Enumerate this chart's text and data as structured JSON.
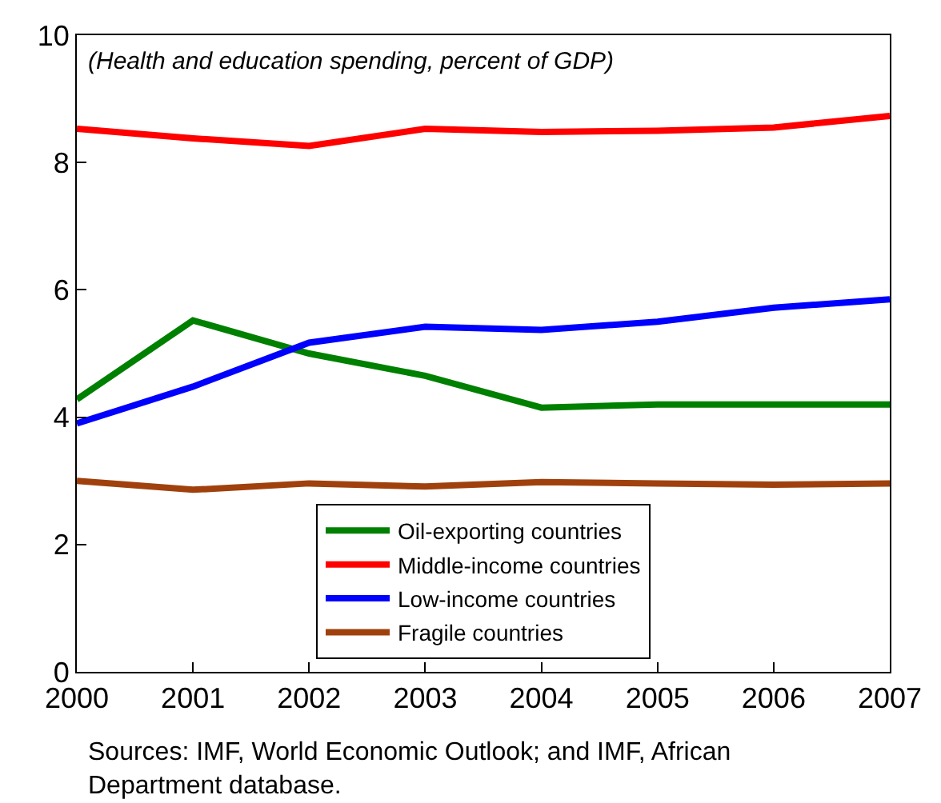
{
  "chart_data": {
    "type": "line",
    "x": [
      2000,
      2001,
      2002,
      2003,
      2004,
      2005,
      2006,
      2007
    ],
    "series": [
      {
        "name": "Oil-exporting countries",
        "color": "#008000",
        "values": [
          4.28,
          5.52,
          5.0,
          4.65,
          4.15,
          4.2,
          4.2,
          4.2
        ]
      },
      {
        "name": "Middle-income countries",
        "color": "#ff0000",
        "values": [
          8.53,
          8.38,
          8.26,
          8.53,
          8.48,
          8.5,
          8.55,
          8.73
        ]
      },
      {
        "name": "Low-income countries",
        "color": "#0000ff",
        "values": [
          3.9,
          4.48,
          5.17,
          5.42,
          5.37,
          5.5,
          5.72,
          5.85
        ]
      },
      {
        "name": "Fragile countries",
        "color": "#a0410d",
        "values": [
          3.0,
          2.86,
          2.96,
          2.91,
          2.98,
          2.96,
          2.94,
          2.96
        ]
      }
    ],
    "xlim": [
      2000,
      2007
    ],
    "xticks": [
      2000,
      2001,
      2002,
      2003,
      2004,
      2005,
      2006,
      2007
    ],
    "ylim": [
      0,
      10
    ],
    "yticks": [
      0,
      2,
      4,
      6,
      8,
      10
    ],
    "subtitle": "(Health and education spending, percent of GDP)",
    "annotations": [
      "Sources: IMF, World Economic Outlook; and IMF, African Department database."
    ],
    "legend": "bottom",
    "marker": "none",
    "line_style": "solid"
  }
}
